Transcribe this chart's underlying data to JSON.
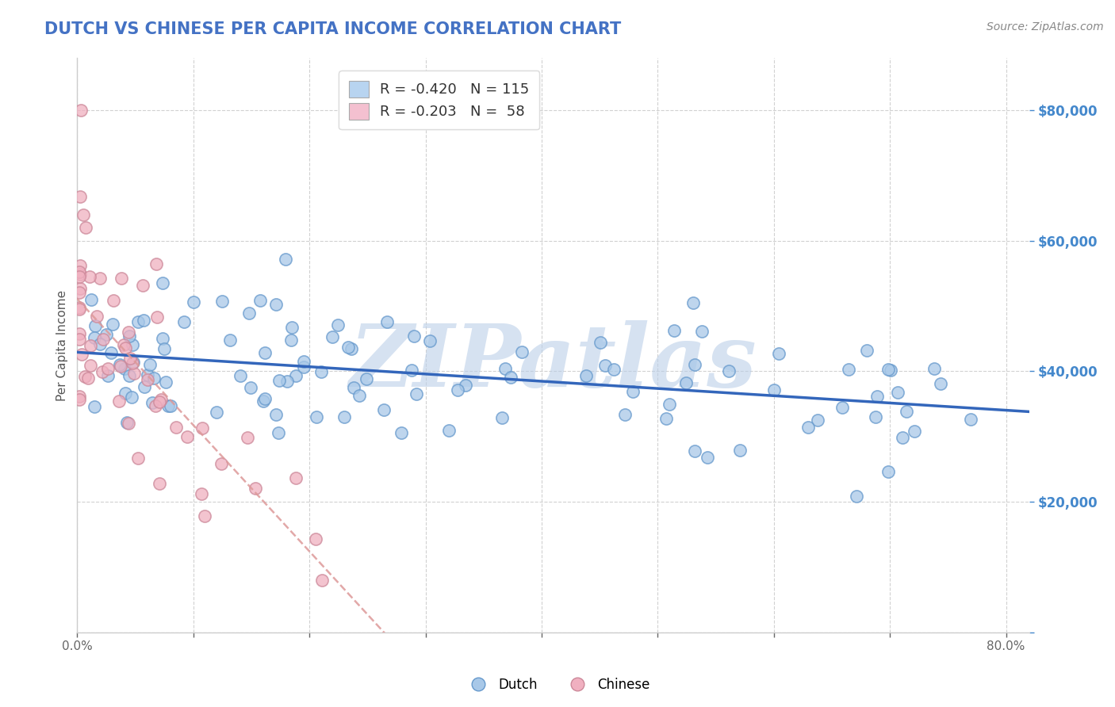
{
  "title": "DUTCH VS CHINESE PER CAPITA INCOME CORRELATION CHART",
  "source": "Source: ZipAtlas.com",
  "ylabel": "Per Capita Income",
  "x_tick_vals": [
    0.0,
    0.1,
    0.2,
    0.3,
    0.4,
    0.5,
    0.6,
    0.7,
    0.8
  ],
  "x_tick_labels": [
    "0.0%",
    "",
    "",
    "",
    "",
    "",
    "",
    "",
    "80.0%"
  ],
  "y_tick_vals": [
    0,
    20000,
    40000,
    60000,
    80000
  ],
  "y_tick_labels": [
    "",
    "$20,000",
    "$40,000",
    "$60,000",
    "$80,000"
  ],
  "xlim": [
    0.0,
    0.82
  ],
  "ylim": [
    0,
    88000
  ],
  "dutch_color": "#A8C8E8",
  "dutch_edge_color": "#6699CC",
  "chinese_color": "#F0B0C0",
  "chinese_edge_color": "#CC8899",
  "trendline_dutch_color": "#3366BB",
  "trendline_chinese_color": "#DD9999",
  "background_color": "#FFFFFF",
  "grid_color": "#CCCCCC",
  "legend_dutch_label": "R = -0.420   N = 115",
  "legend_chinese_label": "R = -0.203   N =  58",
  "legend_dutch_color": "#B8D4F0",
  "legend_chinese_color": "#F4C0D0",
  "watermark_text": "ZIPatlas",
  "watermark_color": "#BBCFE8",
  "bottom_legend_dutch": "Dutch",
  "bottom_legend_chinese": "Chinese",
  "title_color": "#4472C4",
  "ytick_color": "#4488CC",
  "xtick_color": "#666666",
  "ylabel_color": "#555555",
  "source_color": "#888888"
}
